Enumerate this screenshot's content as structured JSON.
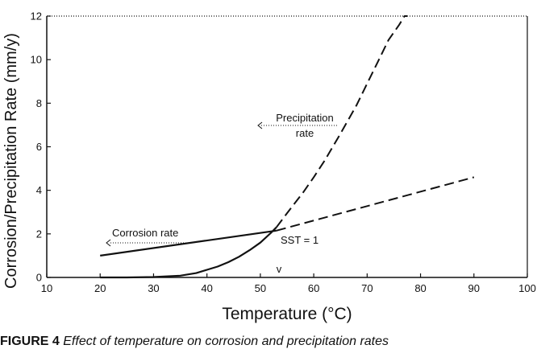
{
  "chart_data": {
    "type": "line",
    "xlabel": "Temperature (°C)",
    "ylabel": "Corrosion/Precipitation Rate (mm/y)",
    "xlim": [
      10,
      100
    ],
    "ylim": [
      0,
      12
    ],
    "xticks": [
      10,
      20,
      30,
      40,
      50,
      60,
      70,
      80,
      90,
      100
    ],
    "yticks": [
      0,
      2,
      4,
      6,
      8,
      10,
      12
    ],
    "grid": false,
    "legend": "none",
    "series": [
      {
        "name": "Corrosion rate",
        "segments": [
          {
            "style": "solid",
            "x": [
              20,
              53
            ],
            "y": [
              1.0,
              2.15
            ]
          },
          {
            "style": "dashed",
            "x": [
              53,
              90
            ],
            "y": [
              2.15,
              4.6
            ]
          }
        ]
      },
      {
        "name": "Precipitation rate",
        "segments": [
          {
            "style": "solid",
            "x": [
              20,
              25,
              30,
              35,
              38,
              40,
              42,
              44,
              46,
              48,
              50,
              52,
              53
            ],
            "y": [
              0,
              0,
              0.02,
              0.08,
              0.2,
              0.35,
              0.5,
              0.7,
              0.95,
              1.25,
              1.6,
              2.05,
              2.3
            ]
          },
          {
            "style": "dashed",
            "x": [
              53,
              55,
              58,
              60,
              62,
              65,
              68,
              70,
              72,
              74,
              76,
              77,
              77.5
            ],
            "y": [
              2.3,
              2.95,
              3.9,
              4.6,
              5.35,
              6.6,
              7.9,
              8.9,
              9.9,
              10.9,
              11.6,
              12,
              12
            ]
          }
        ]
      }
    ],
    "annotations": [
      {
        "lines": [
          "Precipitation",
          "rate"
        ]
      },
      {
        "lines": [
          "Corrosion rate"
        ]
      },
      {
        "lines": [
          "SST = 1"
        ]
      },
      {
        "lines": [
          "v"
        ]
      }
    ]
  },
  "caption": {
    "figure_number": "FIGURE 4",
    "text": "Effect of temperature on corrosion and precipitation rates"
  }
}
